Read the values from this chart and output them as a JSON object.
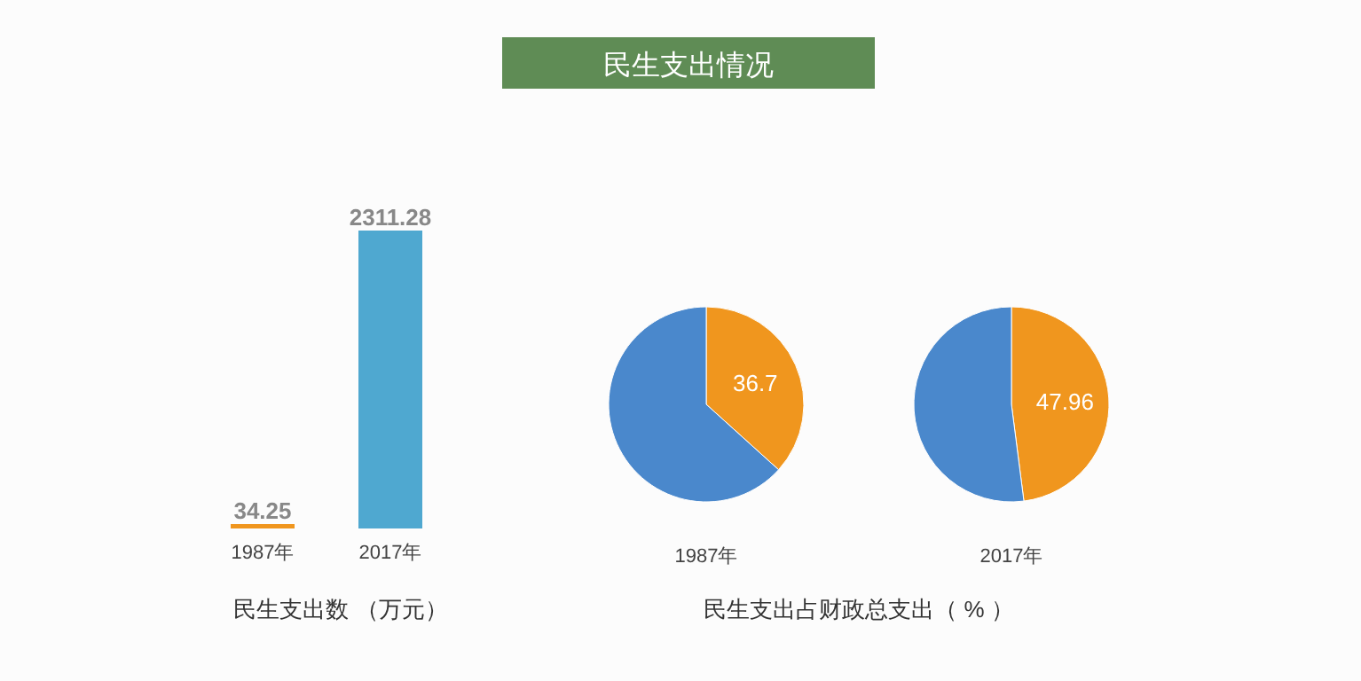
{
  "chart_data": [
    {
      "type": "other",
      "title": "民生支出情况"
    },
    {
      "type": "bar",
      "categories": [
        "1987年",
        "2017年"
      ],
      "values": [
        34.25,
        2311.28
      ],
      "colors": [
        "#f0961e",
        "#4fa8d0"
      ],
      "data_labels": true,
      "xlabel": "民生支出数 （万元）",
      "tick_labels": "x"
    },
    {
      "type": "pie",
      "categories": [
        null,
        null
      ],
      "values": [
        36.7,
        63.3
      ],
      "colors": [
        "#f0961e",
        "#4a88cc"
      ],
      "value_labels": [
        "36.7",
        null
      ],
      "xlabel": "1987年",
      "annotations": [
        "民生支出占财政总支出（ % ）"
      ]
    },
    {
      "type": "pie",
      "categories": [
        null,
        null
      ],
      "values": [
        47.96,
        52.04
      ],
      "colors": [
        "#f0961e",
        "#4a88cc"
      ],
      "value_labels": [
        "47.96",
        null
      ],
      "xlabel": "2017年"
    }
  ]
}
